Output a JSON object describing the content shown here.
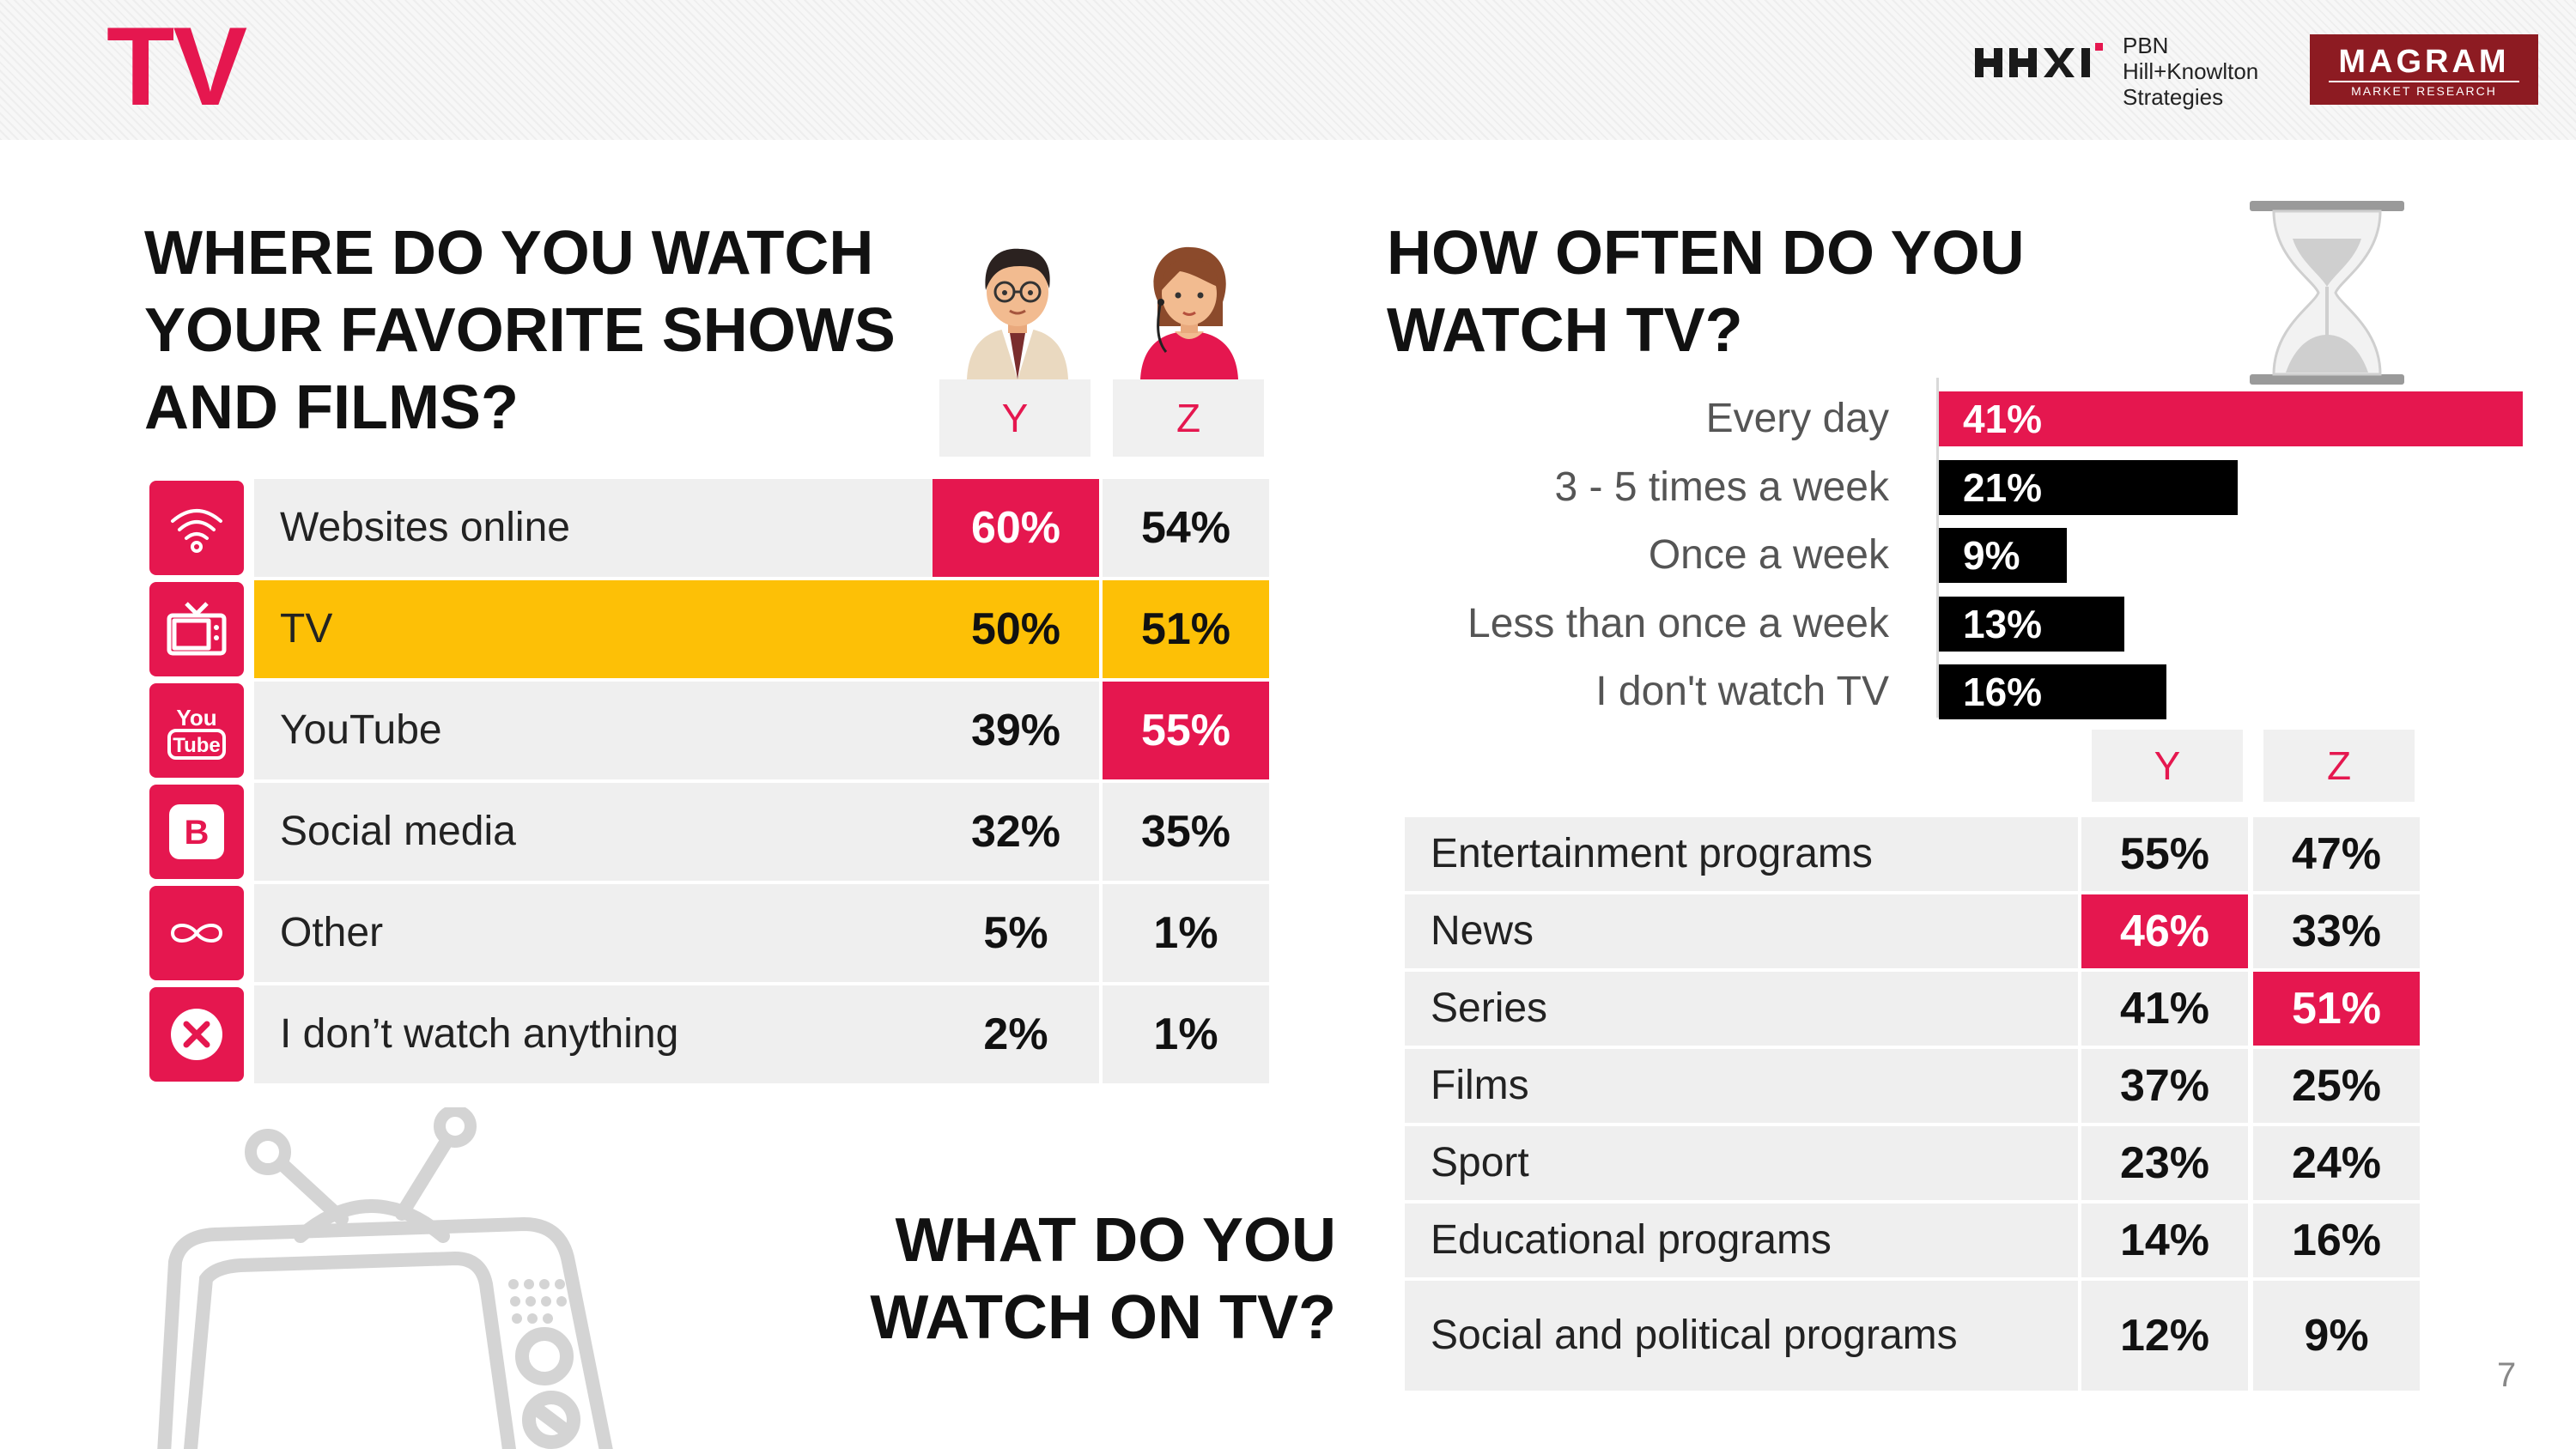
{
  "page_title": "TV",
  "logos": {
    "pbn_lines": [
      "PBN",
      "Hill+Knowlton",
      "Strategies"
    ],
    "magram_name": "MAGRAM",
    "magram_sub": "MARKET RESEARCH"
  },
  "page_number": "7",
  "colors": {
    "accent": "#e5174f",
    "highlight": "#fdc006",
    "bar_dark": "#000000",
    "cell_bg": "#efefef"
  },
  "chart_data": [
    {
      "type": "table",
      "title_lines": [
        "WHERE DO YOU WATCH",
        "YOUR FAVORITE SHOWS",
        "AND FILMS?"
      ],
      "columns": [
        "Y",
        "Z"
      ],
      "rows": [
        {
          "label": "Websites online",
          "icon": "wifi-icon",
          "Y": "60%",
          "Z": "54%",
          "highlight_y": true,
          "highlight_z": false,
          "row_highlight": false
        },
        {
          "label": "TV",
          "icon": "tv-icon",
          "Y": "50%",
          "Z": "51%",
          "highlight_y": false,
          "highlight_z": false,
          "row_highlight": true
        },
        {
          "label": "YouTube",
          "icon": "youtube-icon",
          "Y": "39%",
          "Z": "55%",
          "highlight_y": false,
          "highlight_z": true,
          "row_highlight": false
        },
        {
          "label": "Social media",
          "icon": "vk-b-icon",
          "Y": "32%",
          "Z": "35%",
          "highlight_y": false,
          "highlight_z": false,
          "row_highlight": false
        },
        {
          "label": "Other",
          "icon": "infinity-icon",
          "Y": "5%",
          "Z": "1%",
          "highlight_y": false,
          "highlight_z": false,
          "row_highlight": false
        },
        {
          "label": "I don’t watch anything",
          "icon": "cross-circle-icon",
          "Y": "2%",
          "Z": "1%",
          "highlight_y": false,
          "highlight_z": false,
          "row_highlight": false
        }
      ]
    },
    {
      "type": "bar",
      "orientation": "horizontal",
      "title_lines": [
        "HOW OFTEN DO YOU",
        "WATCH TV?"
      ],
      "categories": [
        "Every day",
        "3 - 5 times a week",
        "Once a week",
        "Less than once a week",
        "I don't watch TV"
      ],
      "values": [
        41,
        21,
        9,
        13,
        16
      ],
      "value_labels": [
        "41%",
        "21%",
        "9%",
        "13%",
        "16%"
      ],
      "bar_colors": [
        "#e5174f",
        "#000000",
        "#000000",
        "#000000",
        "#000000"
      ],
      "xlim": [
        0,
        41
      ]
    },
    {
      "type": "table",
      "title_lines": [
        "WHAT DO YOU",
        "WATCH ON TV?"
      ],
      "columns": [
        "Y",
        "Z"
      ],
      "rows": [
        {
          "label": "Entertainment programs",
          "Y": "55%",
          "Z": "47%",
          "highlight_y": false,
          "highlight_z": false
        },
        {
          "label": "News",
          "Y": "46%",
          "Z": "33%",
          "highlight_y": true,
          "highlight_z": false
        },
        {
          "label": "Series",
          "Y": "41%",
          "Z": "51%",
          "highlight_y": false,
          "highlight_z": true
        },
        {
          "label": "Films",
          "Y": "37%",
          "Z": "25%",
          "highlight_y": false,
          "highlight_z": false
        },
        {
          "label": "Sport",
          "Y": "23%",
          "Z": "24%",
          "highlight_y": false,
          "highlight_z": false
        },
        {
          "label": "Educational programs",
          "Y": "14%",
          "Z": "16%",
          "highlight_y": false,
          "highlight_z": false
        },
        {
          "label": "Social and political programs",
          "Y": "12%",
          "Z": "9%",
          "highlight_y": false,
          "highlight_z": false
        }
      ]
    }
  ]
}
